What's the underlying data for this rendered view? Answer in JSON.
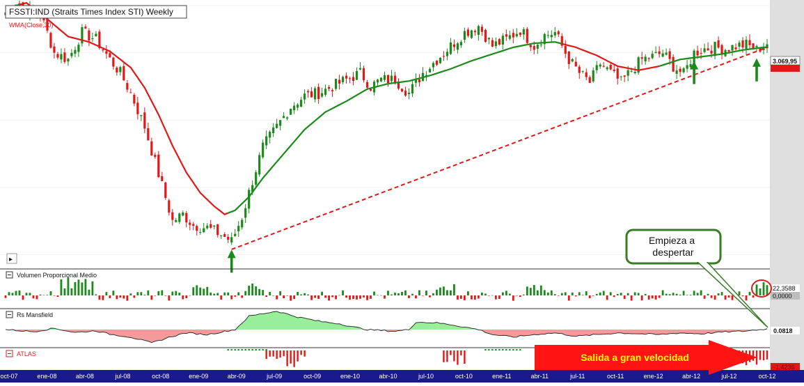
{
  "chart_data": {
    "type": "candlestick",
    "title": "FSSTI:IND (Straits Times Index STI) Weekly",
    "ma_label": "WMA(Close,30)",
    "price_label": "3.069,95",
    "y_range": [
      1400,
      3350
    ],
    "x_tick_labels": [
      "oct-07",
      "ene-08",
      "abr-08",
      "jul-08",
      "oct-08",
      "ene-09",
      "abr-09",
      "jul-09",
      "oct-09",
      "ene-10",
      "abr-10",
      "jul-10",
      "oct-10",
      "ene-11",
      "abr-11",
      "jul-11",
      "oct-11",
      "ene-12",
      "abr-12",
      "jul-12",
      "oct-12"
    ],
    "close_anchors": [
      [
        0,
        3300
      ],
      [
        3,
        3380
      ],
      [
        6,
        3330
      ],
      [
        10,
        3280
      ],
      [
        12,
        3150
      ],
      [
        14,
        3000
      ],
      [
        18,
        2950
      ],
      [
        22,
        3150
      ],
      [
        26,
        3100
      ],
      [
        30,
        2950
      ],
      [
        33,
        2850
      ],
      [
        36,
        2700
      ],
      [
        40,
        2450
      ],
      [
        44,
        2100
      ],
      [
        48,
        1750
      ],
      [
        51,
        1800
      ],
      [
        54,
        1720
      ],
      [
        58,
        1700
      ],
      [
        62,
        1650
      ],
      [
        65,
        1600
      ],
      [
        68,
        1780
      ],
      [
        71,
        2050
      ],
      [
        74,
        2300
      ],
      [
        78,
        2450
      ],
      [
        82,
        2600
      ],
      [
        86,
        2680
      ],
      [
        90,
        2700
      ],
      [
        94,
        2750
      ],
      [
        98,
        2800
      ],
      [
        102,
        2850
      ],
      [
        105,
        2750
      ],
      [
        108,
        2800
      ],
      [
        112,
        2800
      ],
      [
        116,
        2700
      ],
      [
        120,
        2850
      ],
      [
        124,
        2950
      ],
      [
        128,
        3050
      ],
      [
        132,
        3150
      ],
      [
        136,
        3200
      ],
      [
        140,
        3050
      ],
      [
        144,
        3100
      ],
      [
        148,
        3170
      ],
      [
        152,
        3050
      ],
      [
        155,
        3130
      ],
      [
        158,
        3150
      ],
      [
        162,
        2950
      ],
      [
        165,
        2850
      ],
      [
        168,
        2780
      ],
      [
        171,
        2920
      ],
      [
        174,
        2850
      ],
      [
        177,
        2780
      ],
      [
        180,
        2870
      ],
      [
        183,
        2950
      ],
      [
        186,
        2970
      ],
      [
        189,
        3000
      ],
      [
        192,
        2900
      ],
      [
        195,
        2840
      ],
      [
        198,
        3000
      ],
      [
        201,
        3030
      ],
      [
        204,
        3040
      ],
      [
        207,
        3030
      ],
      [
        210,
        3050
      ],
      [
        213,
        3060
      ],
      [
        216,
        3020
      ],
      [
        219,
        3070
      ]
    ],
    "wma_anchors": [
      [
        0,
        3330
      ],
      [
        6,
        3370
      ],
      [
        12,
        3250
      ],
      [
        18,
        3120
      ],
      [
        24,
        3080
      ],
      [
        30,
        3010
      ],
      [
        36,
        2890
      ],
      [
        40,
        2740
      ],
      [
        44,
        2540
      ],
      [
        48,
        2310
      ],
      [
        52,
        2110
      ],
      [
        56,
        1960
      ],
      [
        60,
        1860
      ],
      [
        63,
        1800
      ],
      [
        66,
        1830
      ],
      [
        70,
        1930
      ],
      [
        74,
        2070
      ],
      [
        80,
        2250
      ],
      [
        86,
        2430
      ],
      [
        92,
        2560
      ],
      [
        98,
        2640
      ],
      [
        104,
        2730
      ],
      [
        110,
        2770
      ],
      [
        116,
        2790
      ],
      [
        122,
        2830
      ],
      [
        128,
        2880
      ],
      [
        134,
        2940
      ],
      [
        140,
        2990
      ],
      [
        146,
        3040
      ],
      [
        152,
        3070
      ],
      [
        158,
        3080
      ],
      [
        164,
        3040
      ],
      [
        170,
        2980
      ],
      [
        176,
        2900
      ],
      [
        182,
        2870
      ],
      [
        188,
        2900
      ],
      [
        194,
        2950
      ],
      [
        200,
        2970
      ],
      [
        206,
        2990
      ],
      [
        212,
        3020
      ],
      [
        218,
        3040
      ]
    ],
    "wma_color_segments": [
      {
        "from": 0,
        "to": 4,
        "color": "#1a8a1a"
      },
      {
        "from": 4,
        "to": 64,
        "color": "#e21818"
      },
      {
        "from": 64,
        "to": 160,
        "color": "#1a8a1a"
      },
      {
        "from": 160,
        "to": 188,
        "color": "#e21818"
      },
      {
        "from": 188,
        "to": 219,
        "color": "#1a8a1a"
      }
    ],
    "trendline": {
      "from": [
        65,
        1540
      ],
      "to": [
        219,
        3040
      ],
      "color": "#e21818",
      "style": "dashed"
    },
    "arrows_at": [
      65,
      198,
      216
    ],
    "annotation_callout": "Empieza a despertar",
    "annotation_banner": "Salida a gran velocidad",
    "panels": [
      {
        "name": "Volumen Proporcional Medio",
        "value_label": "22,3588",
        "zero_label": "0,0000",
        "type": "histogram"
      },
      {
        "name": "Rs Mansfield",
        "value_label": "0.0818",
        "type": "area"
      },
      {
        "name": "ATLAS",
        "value_label": "-1,4236",
        "type": "histogram"
      }
    ],
    "rs_anchors": [
      [
        0,
        0
      ],
      [
        8,
        -0.25
      ],
      [
        14,
        0.15
      ],
      [
        20,
        -0.35
      ],
      [
        26,
        -0.15
      ],
      [
        30,
        -0.55
      ],
      [
        36,
        -0.9
      ],
      [
        42,
        -1.6
      ],
      [
        48,
        -0.8
      ],
      [
        52,
        -0.4
      ],
      [
        58,
        -0.6
      ],
      [
        62,
        -0.3
      ],
      [
        66,
        0
      ],
      [
        70,
        1.6
      ],
      [
        74,
        1.9
      ],
      [
        78,
        2.2
      ],
      [
        84,
        1.5
      ],
      [
        90,
        1.0
      ],
      [
        96,
        0.7
      ],
      [
        100,
        0.3
      ],
      [
        104,
        0
      ],
      [
        108,
        -0.1
      ],
      [
        112,
        -0.2
      ],
      [
        116,
        0
      ],
      [
        118,
        0.9
      ],
      [
        124,
        0.8
      ],
      [
        128,
        0.6
      ],
      [
        132,
        0.3
      ],
      [
        136,
        0
      ],
      [
        140,
        -0.6
      ],
      [
        146,
        -0.9
      ],
      [
        152,
        -0.6
      ],
      [
        158,
        -0.4
      ],
      [
        164,
        -0.8
      ],
      [
        170,
        -0.6
      ],
      [
        176,
        -0.4
      ],
      [
        182,
        -0.5
      ],
      [
        188,
        -0.6
      ],
      [
        194,
        -0.4
      ],
      [
        200,
        -0.5
      ],
      [
        206,
        -0.3
      ],
      [
        212,
        -0.2
      ],
      [
        219,
        0.08
      ]
    ],
    "volume_high_weeks": [
      [
        16,
        25,
        2.5
      ],
      [
        54,
        58,
        1.3
      ],
      [
        70,
        74,
        1.5
      ],
      [
        124,
        129,
        1.4
      ],
      [
        150,
        155,
        1.2
      ],
      [
        216,
        219,
        2.1
      ]
    ],
    "atlas_red_ranges": [
      [
        75,
        86
      ],
      [
        126,
        132
      ],
      [
        173,
        176
      ],
      [
        207,
        219
      ]
    ],
    "atlas_green_ranges": [
      [
        64,
        75
      ],
      [
        138,
        148
      ]
    ]
  }
}
